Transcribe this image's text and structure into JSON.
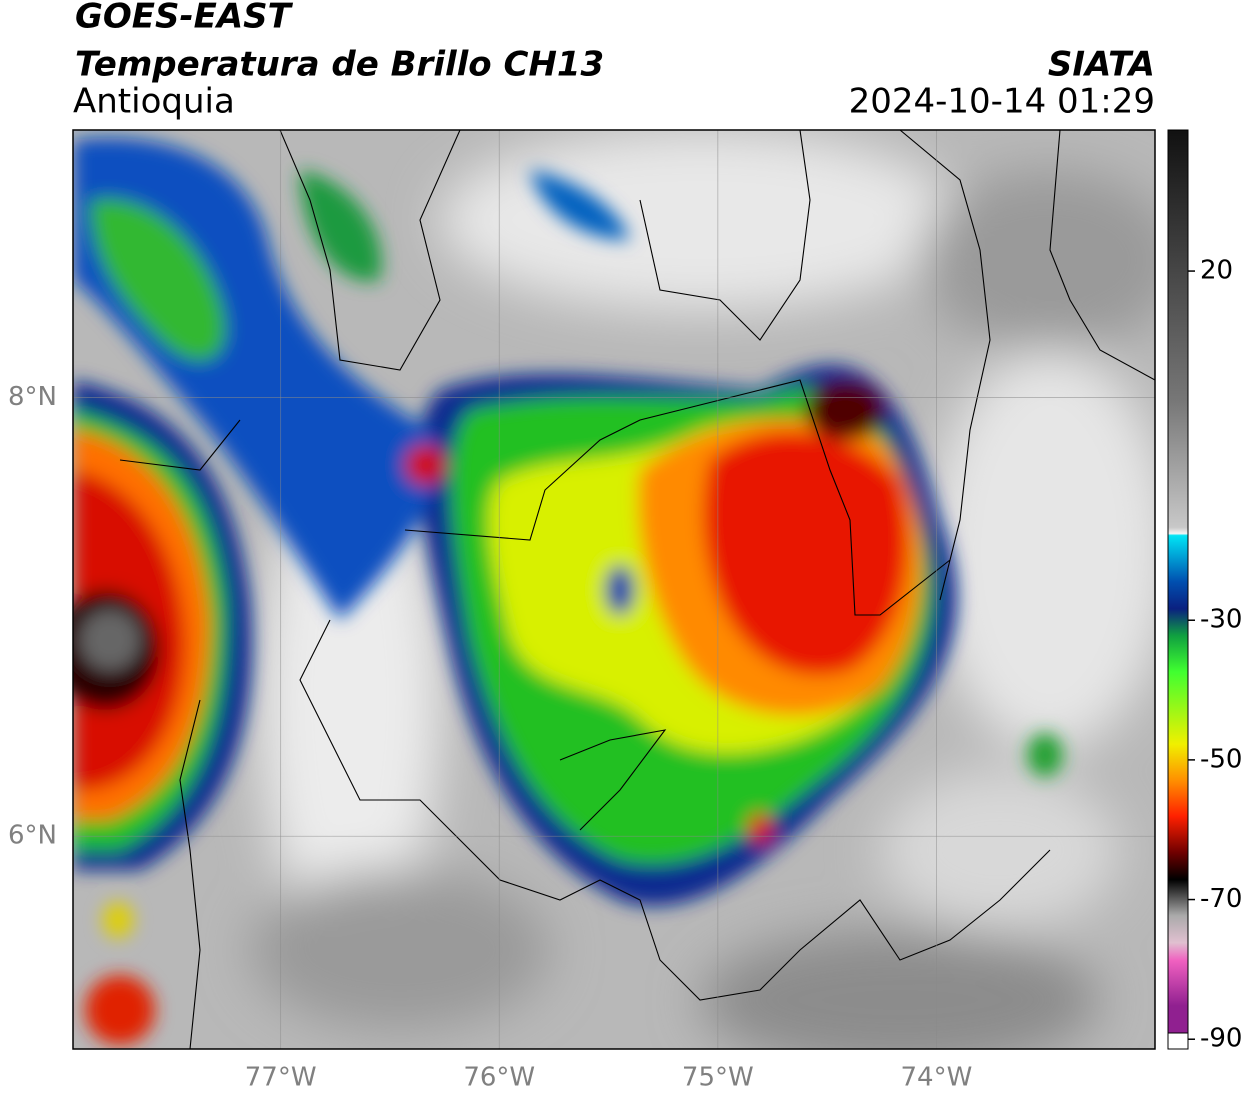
{
  "header": {
    "satellite": "GOES-EAST",
    "product": "Temperatura de Brillo CH13",
    "region": "Antioquia",
    "source": "SIATA",
    "datetime": "2024-10-14 01:29"
  },
  "map": {
    "lonlim": [
      -77.95,
      -73.0
    ],
    "latlim": [
      5.03,
      9.22
    ],
    "lon_ticks": [
      {
        "value": -77,
        "label": "77°W"
      },
      {
        "value": -76,
        "label": "76°W"
      },
      {
        "value": -75,
        "label": "75°W"
      },
      {
        "value": -74,
        "label": "74°W"
      }
    ],
    "lat_ticks": [
      {
        "value": 8,
        "label": "8°N"
      },
      {
        "value": 6,
        "label": "6°N"
      }
    ]
  },
  "colorbar": {
    "lim": [
      -91.4,
      40.2
    ],
    "ticks": [
      20,
      -30,
      -50,
      -70,
      -90
    ]
  }
}
